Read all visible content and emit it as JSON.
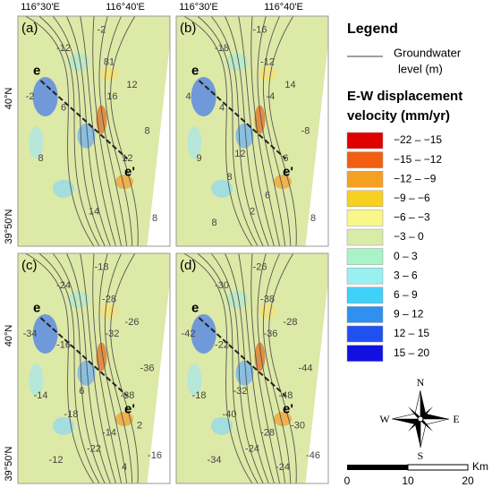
{
  "panels": [
    {
      "label": "(a)",
      "profile_start": "e",
      "profile_end": "e'",
      "contour_labels": [
        "-2",
        "-12",
        "12",
        "81",
        "16",
        "8",
        "12",
        "-2",
        "6",
        "8",
        "14",
        "8"
      ]
    },
    {
      "label": "(b)",
      "profile_start": "e",
      "profile_end": "e'",
      "contour_labels": [
        "-16",
        "-18",
        "14",
        "-12",
        "-4",
        "-8",
        "6",
        "4",
        "4",
        "9",
        "2",
        "8",
        "8",
        "6",
        "8",
        "12"
      ]
    },
    {
      "label": "(c)",
      "profile_start": "e",
      "profile_end": "e'",
      "contour_labels": [
        "-18",
        "-24",
        "-26",
        "-28",
        "-32",
        "-36",
        "-38",
        "-34",
        "-16",
        "-14",
        "-22",
        "-16",
        "-18",
        "-14",
        "-12",
        "6",
        "2",
        "4"
      ]
    },
    {
      "label": "(d)",
      "profile_start": "e",
      "profile_end": "e'",
      "contour_labels": [
        "-26",
        "-30",
        "-28",
        "-38",
        "-36",
        "-44",
        "-48",
        "-42",
        "-22",
        "-18",
        "-24",
        "-46",
        "-40",
        "-28",
        "-34",
        "-32",
        "-30",
        "-24"
      ]
    }
  ],
  "coordinates": {
    "lon": [
      "116°30'E",
      "116°40'E"
    ],
    "lat": [
      "40°N",
      "39°50'N"
    ]
  },
  "legend": {
    "title": "Legend",
    "line_label": [
      "Groundwater",
      "level (m)"
    ],
    "velocity_title": [
      "E-W displacement",
      "velocity (mm/yr)"
    ],
    "classes": [
      {
        "label": "−22 – −15",
        "color": "#e00000"
      },
      {
        "label": "−15 – −12",
        "color": "#f06010"
      },
      {
        "label": "−12 – −9",
        "color": "#f4a020"
      },
      {
        "label": "−9 – −6",
        "color": "#f8d020"
      },
      {
        "label": "−6 – −3",
        "color": "#f8f888"
      },
      {
        "label": "−3 – 0",
        "color": "#d8eca8"
      },
      {
        "label": "0 – 3",
        "color": "#a8f4c8"
      },
      {
        "label": "3 – 6",
        "color": "#98f0f0"
      },
      {
        "label": "6 – 9",
        "color": "#40d0f8"
      },
      {
        "label": "9 – 12",
        "color": "#3090f0"
      },
      {
        "label": "12 – 15",
        "color": "#2050f0"
      },
      {
        "label": "15 – 20",
        "color": "#1010e0"
      }
    ]
  },
  "compass": {
    "n": "N",
    "s": "S",
    "e": "E",
    "w": "W"
  },
  "scale_bar": {
    "ticks": [
      "0",
      "10",
      "20"
    ],
    "unit": "Km"
  }
}
